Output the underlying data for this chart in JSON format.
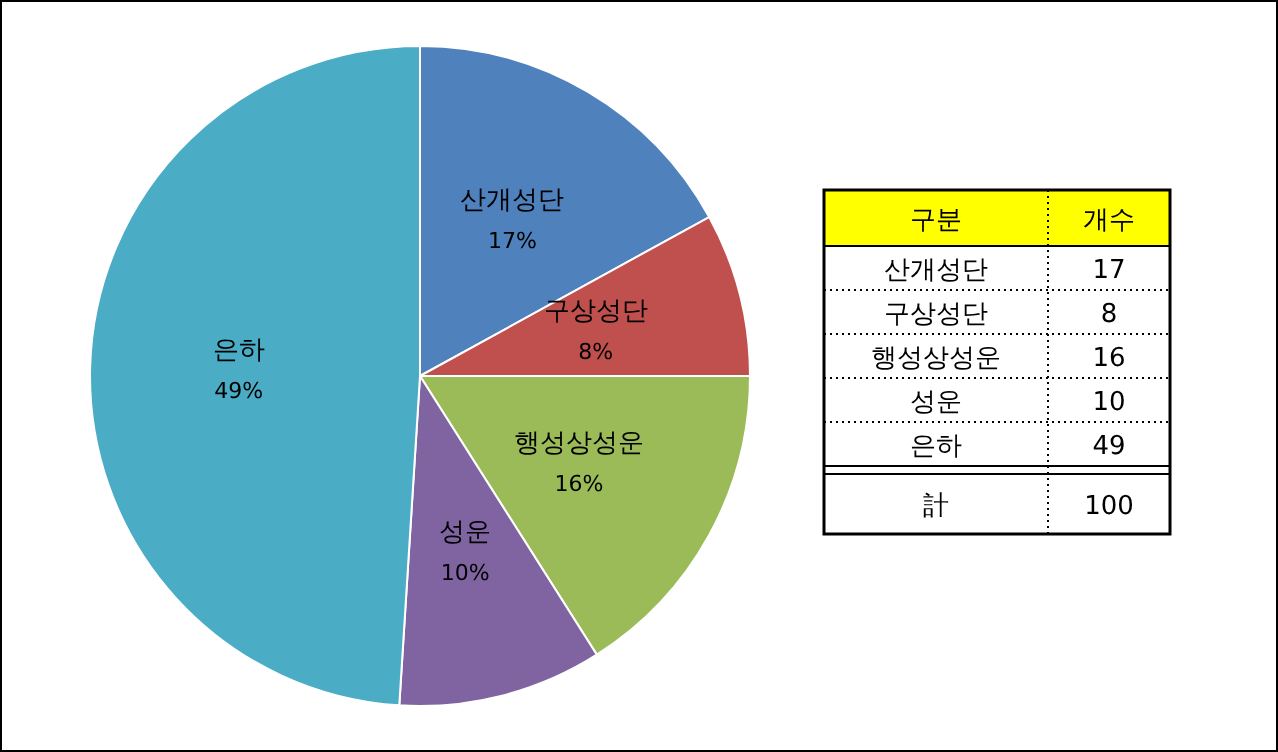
{
  "chart_data": {
    "type": "pie",
    "categories": [
      "산개성단",
      "구상성단",
      "행성상성운",
      "성운",
      "은하"
    ],
    "values": [
      17,
      8,
      16,
      10,
      49
    ],
    "colors": [
      "#4f81bd",
      "#c0504d",
      "#9bbb59",
      "#8064a2",
      "#4bacc6"
    ],
    "value_labels": [
      "17%",
      "8%",
      "16%",
      "10%",
      "49%"
    ],
    "annotations": [
      "구분",
      "개수",
      "17",
      "8",
      "16",
      "10",
      "49",
      "計",
      "100"
    ],
    "legend": false
  }
}
